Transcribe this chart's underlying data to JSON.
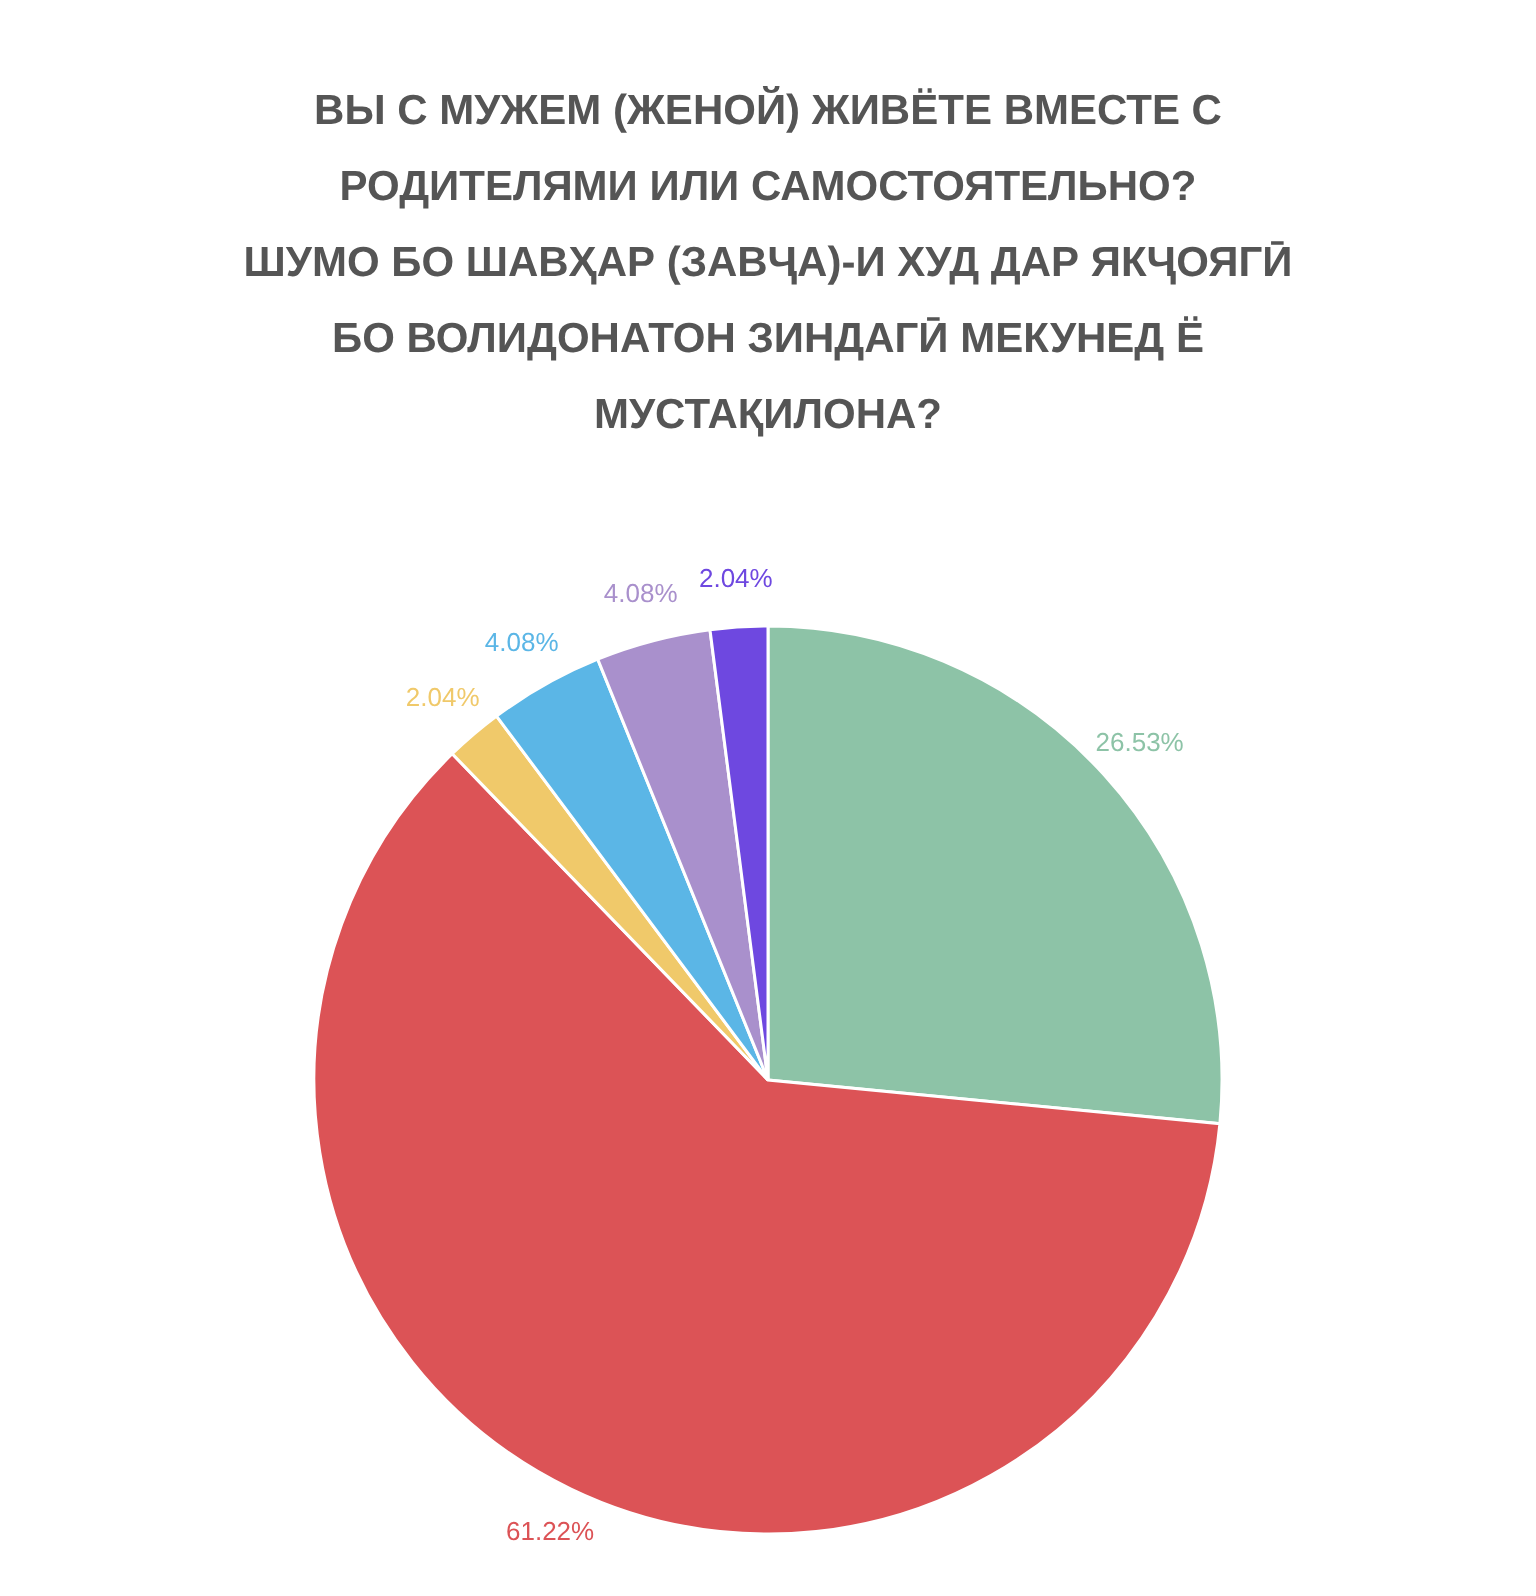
{
  "chart_data": {
    "type": "pie",
    "title": "ВЫ С МУЖЕМ (ЖЕНОЙ) ЖИВЁТЕ ВМЕСТЕ С\nРОДИТЕЛЯМИ ИЛИ САМОСТОЯТЕЛЬНО?\nШУМО БО ШАВҲАР (ЗАВҶА)-И ХУД ДАР ЯКҶОЯГӢ\nБО ВОЛИДОНАТОН ЗИНДАГӢ МЕКУНЕД Ё\nМУСТАҚИЛОНА?",
    "categories": [
      null,
      null,
      null,
      null,
      null,
      null
    ],
    "values": [
      26.53,
      61.22,
      2.04,
      4.08,
      4.08,
      2.04
    ],
    "value_labels": [
      "26.53%",
      "61.22%",
      "2.04%",
      "4.08%",
      "4.08%",
      "2.04%"
    ],
    "colors": [
      "#8dc3a7",
      "#dc5356",
      "#f0c96a",
      "#5bb6e6",
      "#a990cc",
      "#6e48e0"
    ],
    "legend": false
  }
}
